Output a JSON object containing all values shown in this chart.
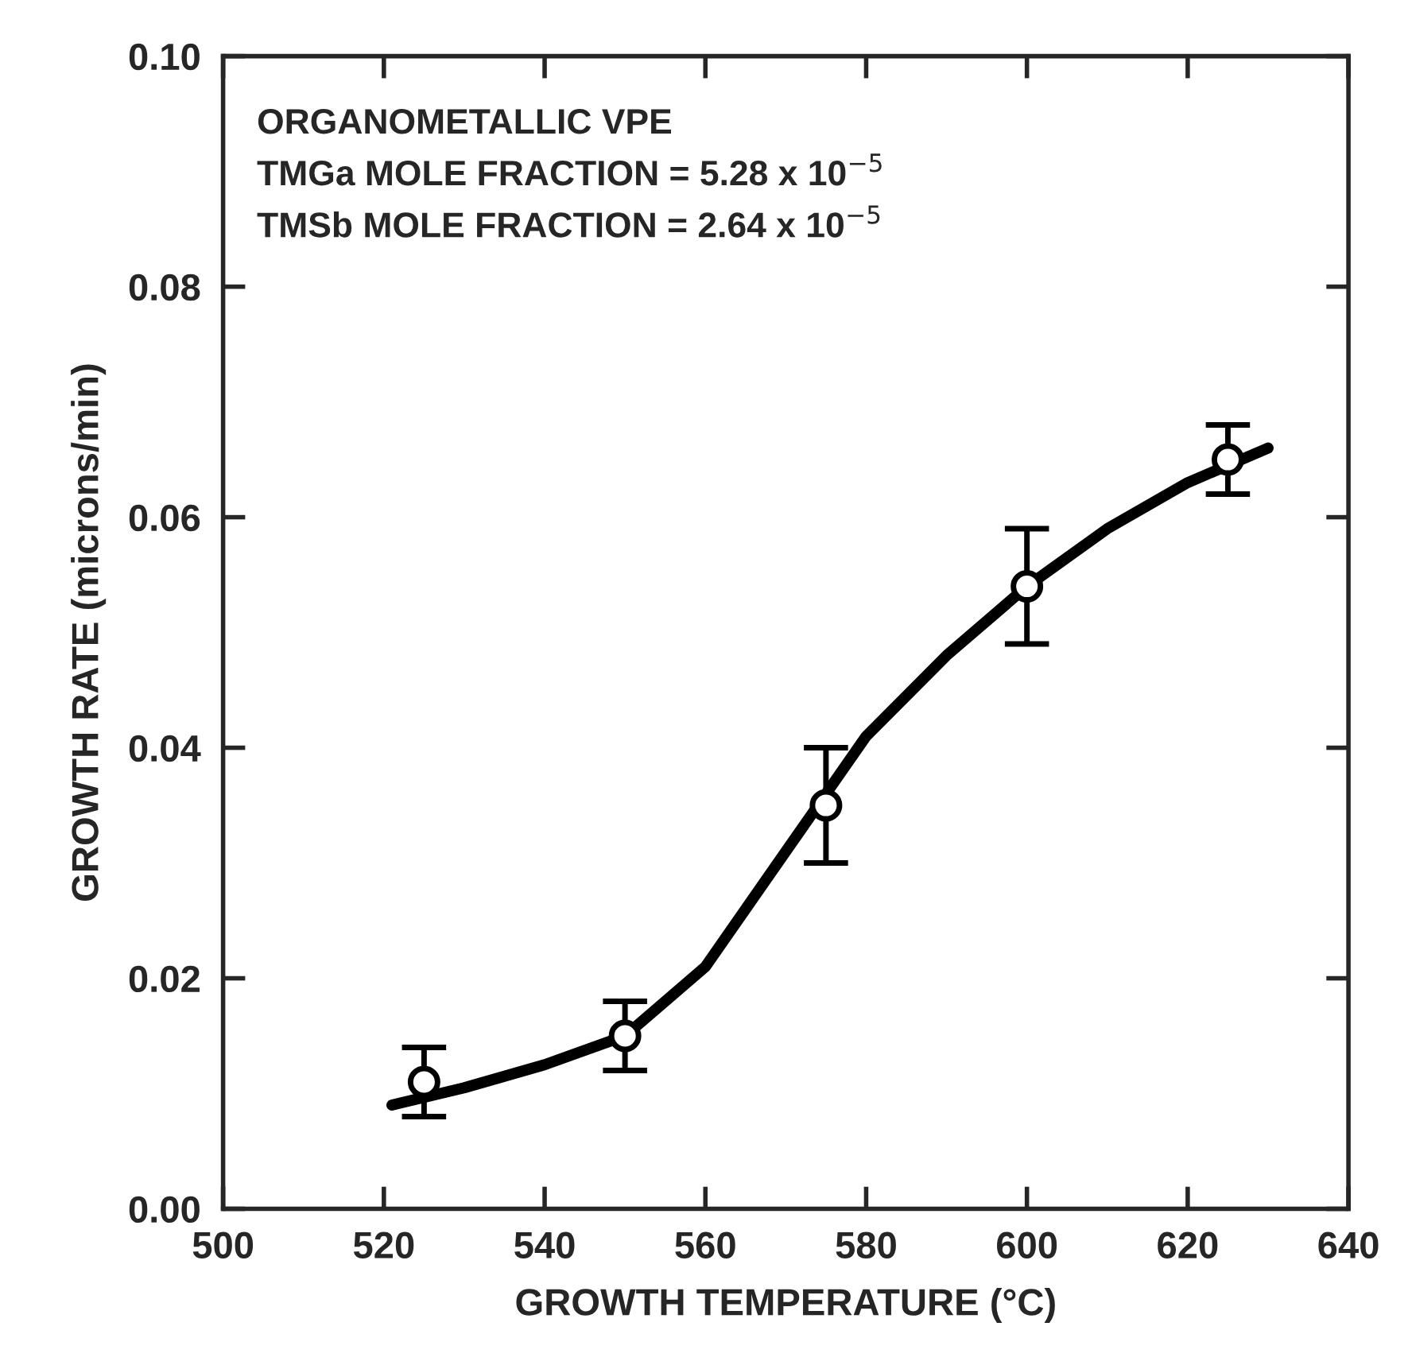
{
  "chart_data": {
    "type": "scatter",
    "xlabel": "GROWTH TEMPERATURE (°C)",
    "ylabel": "GROWTH RATE (microns/min)",
    "annotations": [
      "ORGANOMETALLIC VPE",
      "TMGa MOLE FRACTION = 5.28 x 10$^{−5}$",
      "TMSb MOLE FRACTION = 2.64 x 10$^{−5}$"
    ],
    "series": [
      {
        "color": "#000000",
        "marker": "circle",
        "x": [
          525,
          550,
          575,
          600,
          625
        ],
        "values": [
          0.011,
          0.015,
          0.035,
          0.054,
          0.065
        ],
        "errors": [
          [
            0.008,
            0.014
          ],
          [
            0.012,
            0.018
          ],
          [
            0.03,
            0.04
          ],
          [
            0.049,
            0.059
          ],
          [
            0.062,
            0.068
          ]
        ]
      },
      {
        "type": "line",
        "color": "#000000",
        "line_style": "solid",
        "x": [
          521,
          530,
          540,
          550,
          560,
          565,
          570,
          575,
          580,
          590,
          600,
          610,
          620,
          630
        ],
        "values": [
          0.009,
          0.0105,
          0.0125,
          0.015,
          0.021,
          0.026,
          0.031,
          0.036,
          0.041,
          0.048,
          0.054,
          0.059,
          0.063,
          0.066
        ]
      }
    ],
    "xlim": [
      500,
      640
    ],
    "xticks": [
      500,
      520,
      540,
      560,
      580,
      600,
      620,
      640
    ],
    "ylim": [
      0,
      0.1
    ],
    "yticks": [
      {
        "value": 0,
        "label": "0.00"
      },
      {
        "value": 0.02,
        "label": "0.02"
      },
      {
        "value": 0.04,
        "label": "0.04"
      },
      {
        "value": 0.06,
        "label": "0.06"
      },
      {
        "value": 0.08,
        "label": "0.08"
      },
      {
        "value": 0.1,
        "label": "0.10"
      }
    ],
    "grid": false,
    "legend": false
  }
}
